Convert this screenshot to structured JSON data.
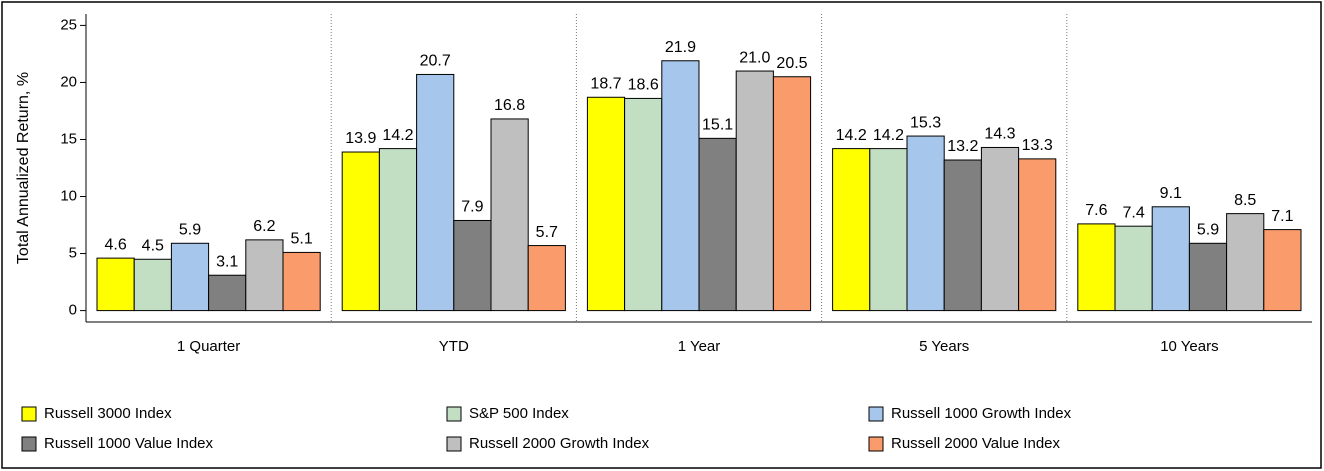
{
  "chart_data": {
    "type": "bar",
    "ylabel": "Total Annualized Return, %",
    "categories": [
      "1 Quarter",
      "YTD",
      "1 Year",
      "5 Years",
      "10 Years"
    ],
    "series": [
      {
        "name": "Russell 3000 Index",
        "color": "#ffff00",
        "values": [
          4.6,
          13.9,
          18.7,
          14.2,
          7.6
        ]
      },
      {
        "name": "S&P 500 Index",
        "color": "#c2dfc4",
        "values": [
          4.5,
          14.2,
          18.6,
          14.2,
          7.4
        ]
      },
      {
        "name": "Russell 1000 Growth Index",
        "color": "#a6c6ec",
        "values": [
          5.9,
          20.7,
          21.9,
          15.3,
          9.1
        ]
      },
      {
        "name": "Russell 1000 Value Index",
        "color": "#808080",
        "values": [
          3.1,
          7.9,
          15.1,
          13.2,
          5.9
        ]
      },
      {
        "name": "Russell 2000 Growth Index",
        "color": "#bfbfbf",
        "values": [
          6.2,
          16.8,
          21.0,
          14.3,
          8.5
        ]
      },
      {
        "name": "Russell 2000 Value Index",
        "color": "#f99b6b",
        "values": [
          5.1,
          5.7,
          20.5,
          13.3,
          7.1
        ]
      }
    ],
    "value_labels": [
      [
        "4.6",
        "13.9",
        "18.7",
        "14.2",
        "7.6"
      ],
      [
        "4.5",
        "14.2",
        "18.6",
        "14.2",
        "7.4"
      ],
      [
        "5.9",
        "20.7",
        "21.9",
        "15.3",
        "9.1"
      ],
      [
        "3.1",
        "7.9",
        "15.1",
        "13.2",
        "5.9"
      ],
      [
        "6.2",
        "16.8",
        "21.0",
        "14.3",
        "8.5"
      ],
      [
        "5.1",
        "5.7",
        "20.5",
        "13.3",
        "7.1"
      ]
    ],
    "ylim": [
      -1,
      26
    ],
    "yticks": [
      0,
      5,
      10,
      15,
      20,
      25
    ],
    "grid": false
  }
}
